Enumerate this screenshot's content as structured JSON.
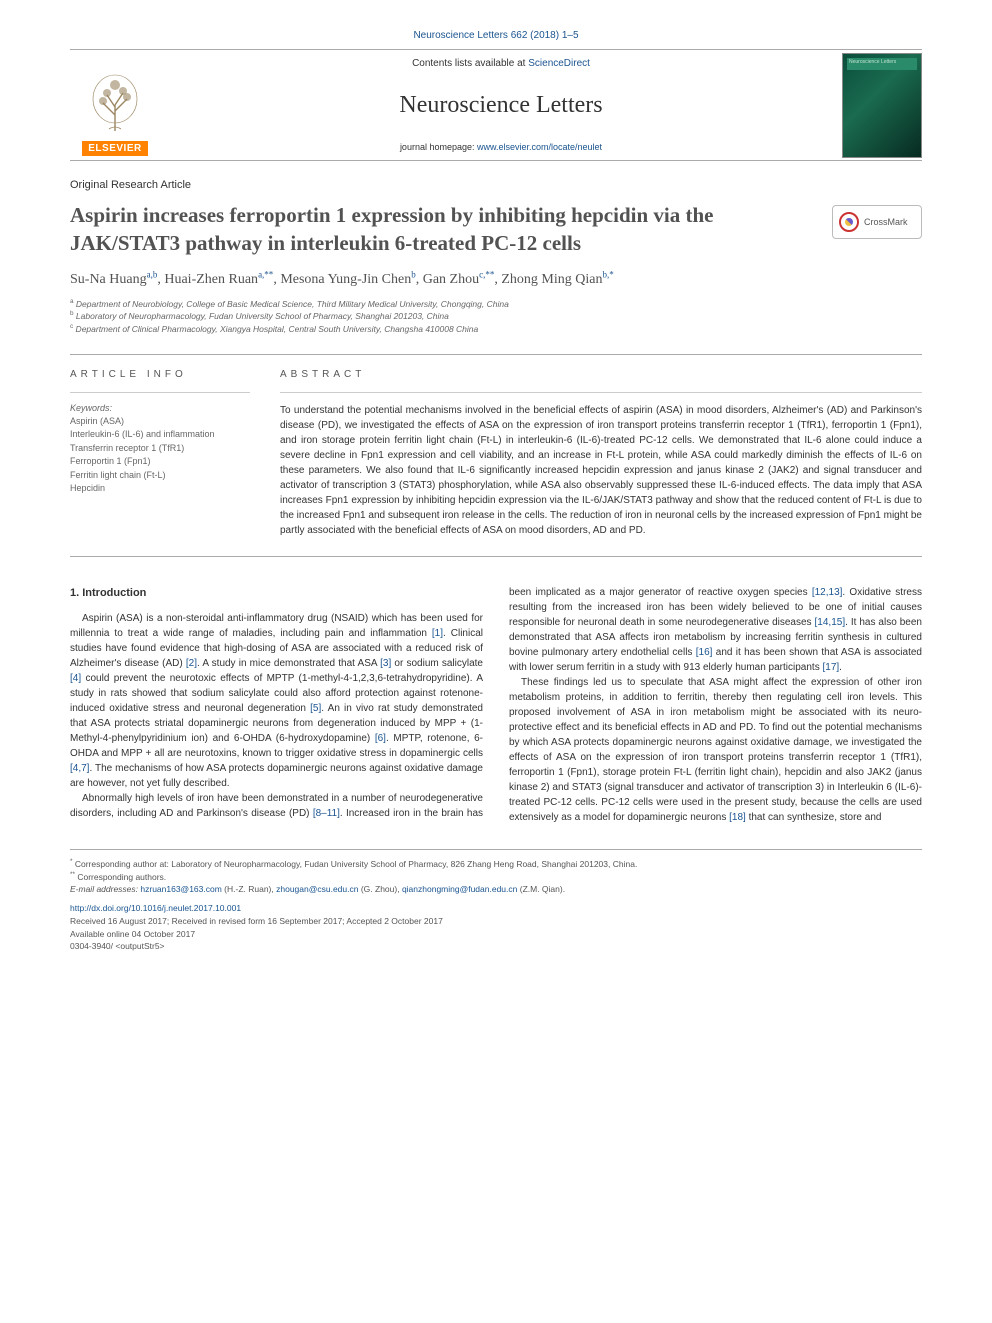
{
  "header_citation": "Neuroscience Letters 662 (2018) 1–5",
  "masthead": {
    "contents_prefix": "Contents lists available at ",
    "contents_link": "ScienceDirect",
    "journal_name": "Neuroscience Letters",
    "homepage_prefix": "journal homepage: ",
    "homepage_link": "www.elsevier.com/locate/neulet",
    "publisher_name": "ELSEVIER",
    "cover_label": "Neuroscience Letters"
  },
  "article_type": "Original Research Article",
  "title": "Aspirin increases ferroportin 1 expression by inhibiting hepcidin via the JAK/STAT3 pathway in interleukin 6-treated PC-12 cells",
  "crossmark_label": "CrossMark",
  "authors_html": "Su-Na Huang<sup>a,b</sup>, Huai-Zhen Ruan<sup>a,**</sup>, Mesona Yung-Jin Chen<sup>b</sup>, Gan Zhou<sup>c,**</sup>, Zhong Ming Qian<sup>b,*</sup>",
  "affiliations": [
    "a Department of Neurobiology, College of Basic Medical Science, Third Military Medical University, Chongqing, China",
    "b Laboratory of Neuropharmacology, Fudan University School of Pharmacy, Shanghai 201203, China",
    "c Department of Clinical Pharmacology, Xiangya Hospital, Central South University, Changsha 410008 China"
  ],
  "article_info_heading": "ARTICLE INFO",
  "abstract_heading": "ABSTRACT",
  "keywords_label": "Keywords:",
  "keywords": [
    "Aspirin (ASA)",
    "Interleukin-6 (IL-6) and inflammation",
    "Transferrin receptor 1 (TfR1)",
    "Ferroportin 1 (Fpn1)",
    "Ferritin light chain (Ft-L)",
    "Hepcidin"
  ],
  "abstract_text": "To understand the potential mechanisms involved in the beneficial effects of aspirin (ASA) in mood disorders, Alzheimer's (AD) and Parkinson's disease (PD), we investigated the effects of ASA on the expression of iron transport proteins transferrin receptor 1 (TfR1), ferroportin 1 (Fpn1), and iron storage protein ferritin light chain (Ft-L) in interleukin-6 (IL-6)-treated PC-12 cells. We demonstrated that IL-6 alone could induce a severe decline in Fpn1 expression and cell viability, and an increase in Ft-L protein, while ASA could markedly diminish the effects of IL-6 on these parameters. We also found that IL-6 significantly increased hepcidin expression and janus kinase 2 (JAK2) and signal transducer and activator of transcription 3 (STAT3) phosphorylation, while ASA also observably suppressed these IL-6-induced effects. The data imply that ASA increases Fpn1 expression by inhibiting hepcidin expression via the IL-6/JAK/STAT3 pathway and show that the reduced content of Ft-L is due to the increased Fpn1 and subsequent iron release in the cells. The reduction of iron in neuronal cells by the increased expression of Fpn1 might be partly associated with the beneficial effects of ASA on mood disorders, AD and PD.",
  "section_heading": "1. Introduction",
  "para1": "Aspirin (ASA) is a non-steroidal anti-inflammatory drug (NSAID) which has been used for millennia to treat a wide range of maladies, including pain and inflammation [1]. Clinical studies have found evidence that high-dosing of ASA are associated with a reduced risk of Alzheimer's disease (AD) [2]. A study in mice demonstrated that ASA [3] or sodium salicylate [4] could prevent the neurotoxic effects of MPTP (1-methyl-4-1,2,3,6-tetrahydropyridine). A study in rats showed that sodium salicylate could also afford protection against rotenone-induced oxidative stress and neuronal degeneration [5]. An in vivo rat study demonstrated that ASA protects striatal dopaminergic neurons from degeneration induced by MPP + (1-Methyl-4-phenylpyridinium ion) and 6-OHDA (6-hydroxydopamine) [6]. MPTP, rotenone, 6-OHDA and MPP + all are neurotoxins, known to trigger oxidative stress in dopaminergic cells [4,7]. The mechanisms of how ASA protects dopaminergic neurons against oxidative damage are however, not yet fully described.",
  "para2": "Abnormally high levels of iron have been demonstrated in a number of neurodegenerative disorders, including AD and Parkinson's disease (PD) [8–11]. Increased iron in the brain has been implicated as a major generator of reactive oxygen species [12,13]. Oxidative stress resulting from the increased iron has been widely believed to be one of initial causes responsible for neuronal death in some neurodegenerative diseases [14,15]. It has also been demonstrated that ASA affects iron metabolism by increasing ferritin synthesis in cultured bovine pulmonary artery endothelial cells [16] and it has been shown that ASA is associated with lower serum ferritin in a study with 913 elderly human participants [17].",
  "para3": "These findings led us to speculate that ASA might affect the expression of other iron metabolism proteins, in addition to ferritin, thereby then regulating cell iron levels. This proposed involvement of ASA in iron metabolism might be associated with its neuro-protective effect and its beneficial effects in AD and PD. To find out the potential mechanisms by which ASA protects dopaminergic neurons against oxidative damage, we investigated the effects of ASA on the expression of iron transport proteins transferrin receptor 1 (TfR1), ferroportin 1 (Fpn1), storage protein Ft-L (ferritin light chain), hepcidin and also JAK2 (janus kinase 2) and STAT3 (signal transducer and activator of transcription 3) in Interleukin 6 (IL-6)-treated PC-12 cells. PC-12 cells were used in the present study, because the cells are used extensively as a model for dopaminergic neurons [18] that can synthesize, store and",
  "ref_tokens": [
    "[1]",
    "[2]",
    "[3]",
    "[4]",
    "[5]",
    "[6]",
    "[4,7]",
    "[8–11]",
    "[12,13]",
    "[14,15]",
    "[16]",
    "[17]",
    "[18]"
  ],
  "footer": {
    "corr1": "* Corresponding author at: Laboratory of Neuropharmacology, Fudan University School of Pharmacy, 826 Zhang Heng Road, Shanghai 201203, China.",
    "corr2": "** Corresponding authors.",
    "emails_label": "E-mail addresses: ",
    "emails": [
      {
        "addr": "hzruan163@163.com",
        "who": "(H.-Z. Ruan)"
      },
      {
        "addr": "zhougan@csu.edu.cn",
        "who": "(G. Zhou)"
      },
      {
        "addr": "qianzhongming@fudan.edu.cn",
        "who": "(Z.M. Qian)"
      }
    ],
    "doi": "http://dx.doi.org/10.1016/j.neulet.2017.10.001",
    "received": "Received 16 August 2017; Received in revised form 16 September 2017; Accepted 2 October 2017",
    "available": "Available online 04 October 2017",
    "issn": "0304-3940/ <outputStr5>"
  },
  "colors": {
    "link": "#1a5490",
    "publisher_orange": "#ff8200",
    "text": "#333333",
    "muted": "#666666",
    "rule": "#aaaaaa"
  },
  "typography": {
    "body_pt": 10,
    "title_pt": 21,
    "journal_pt": 24,
    "authors_pt": 14,
    "footer_pt": 8.5
  }
}
